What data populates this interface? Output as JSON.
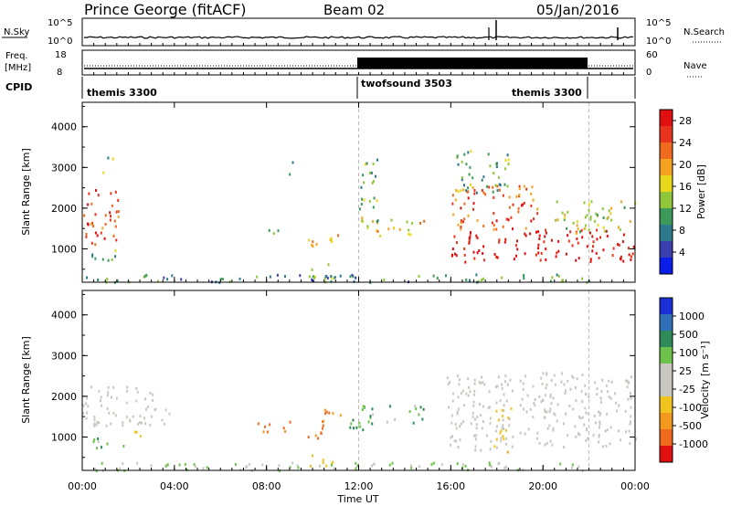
{
  "header": {
    "station": "Prince George (fitACF)",
    "beam": "Beam 02",
    "date": "05/Jan/2016"
  },
  "noise_panel": {
    "left_label": "N.Sky",
    "right_label": "N.Search",
    "tick_hi": "10^5",
    "tick_lo": "10^0"
  },
  "freq_panel": {
    "left_label": "Freq.",
    "unit": "[MHz]",
    "tick_hi": "18",
    "tick_lo": "8",
    "right_tick_hi": "60",
    "right_tick_lo": "0",
    "right_label": "Nave"
  },
  "cpid": {
    "label": "CPID",
    "modes": [
      {
        "name": "themis 3300",
        "start": "00:00"
      },
      {
        "name": "twofsound 3503",
        "start": "12:00"
      },
      {
        "name": "themis 3300",
        "start": "22:00"
      }
    ]
  },
  "colors": {
    "power_scale": [
      "#0b1de8",
      "#3a3fb0",
      "#2e7a8a",
      "#3b9a5a",
      "#8fc63a",
      "#e8d71a",
      "#f4a21f",
      "#f06a1e",
      "#e8341c",
      "#e01010"
    ],
    "velocity_scale": [
      "#1b2fd6",
      "#2f6fb8",
      "#2f8a5a",
      "#6cc24a",
      "#c8c8c0",
      "#c8c8c0",
      "#f0c31e",
      "#f39a1e",
      "#f06a1e",
      "#e01010"
    ],
    "ground_scatter": "#c8c8c0"
  },
  "chart_data": [
    {
      "type": "heatmap",
      "title": "",
      "ylabel": "Slant Range [km]",
      "ylim": [
        180,
        4600
      ],
      "yticks": [
        "1000",
        "2000",
        "3000",
        "4000"
      ],
      "colorbar": {
        "label": "Power [dB]",
        "ticks": [
          "4",
          "8",
          "12",
          "16",
          "20",
          "24",
          "28"
        ],
        "range": [
          0,
          30
        ]
      },
      "blobs": [
        {
          "t0": 0.0,
          "t1": 1.6,
          "r0": 1100,
          "r1": 2500,
          "level": 24
        },
        {
          "t0": 0.4,
          "t1": 1.9,
          "r0": 700,
          "r1": 1000,
          "level": 10
        },
        {
          "t0": 0.8,
          "t1": 1.3,
          "r0": 2900,
          "r1": 3300,
          "level": 12
        },
        {
          "t0": 7.9,
          "t1": 8.5,
          "r0": 1300,
          "r1": 1600,
          "level": 14
        },
        {
          "t0": 8.9,
          "t1": 9.2,
          "r0": 2800,
          "r1": 3300,
          "level": 10
        },
        {
          "t0": 10.7,
          "t1": 11.4,
          "r0": 1150,
          "r1": 1550,
          "level": 18
        },
        {
          "t0": 9.6,
          "t1": 10.4,
          "r0": 1000,
          "r1": 1400,
          "level": 16
        },
        {
          "t0": 12.1,
          "t1": 14.9,
          "r0": 1350,
          "r1": 1800,
          "level": 16
        },
        {
          "t0": 12.0,
          "t1": 12.8,
          "r0": 1700,
          "r1": 3400,
          "level": 10
        },
        {
          "t0": 16.0,
          "t1": 24.0,
          "r0": 700,
          "r1": 1500,
          "level": 28
        },
        {
          "t0": 16.0,
          "t1": 19.8,
          "r0": 1500,
          "r1": 2600,
          "level": 22
        },
        {
          "t0": 16.2,
          "t1": 18.5,
          "r0": 2400,
          "r1": 3500,
          "level": 10
        },
        {
          "t0": 20.5,
          "t1": 24.0,
          "r0": 1400,
          "r1": 2200,
          "level": 14
        },
        {
          "t0": 9.8,
          "t1": 11.0,
          "r0": 300,
          "r1": 650,
          "level": 12
        },
        {
          "t0": 0.0,
          "t1": 22.0,
          "r0": 200,
          "r1": 400,
          "level": 8
        }
      ]
    },
    {
      "type": "heatmap",
      "title": "",
      "xlabel": "Time UT",
      "ylabel": "Slant Range [km]",
      "ylim": [
        180,
        4600
      ],
      "xticks": [
        "00:00",
        "04:00",
        "08:00",
        "12:00",
        "16:00",
        "20:00",
        "00:00"
      ],
      "yticks": [
        "1000",
        "2000",
        "3000",
        "4000"
      ],
      "colorbar": {
        "label": "Velocity [m s⁻¹]",
        "ticks": [
          "1000",
          "500",
          "100",
          "25",
          "-25",
          "-100",
          "-500",
          "-1000"
        ]
      },
      "blobs": [
        {
          "t0": 0.0,
          "t1": 3.8,
          "r0": 1300,
          "r1": 2300,
          "value": 0
        },
        {
          "t0": 0.4,
          "t1": 1.9,
          "r0": 700,
          "r1": 1000,
          "value": 100
        },
        {
          "t0": 1.9,
          "t1": 2.5,
          "r0": 1050,
          "r1": 1300,
          "value": -100
        },
        {
          "t0": 7.6,
          "t1": 9.0,
          "r0": 1150,
          "r1": 1500,
          "value": -500
        },
        {
          "t0": 9.6,
          "t1": 10.6,
          "r0": 1000,
          "r1": 1450,
          "value": -500
        },
        {
          "t0": 10.3,
          "t1": 11.3,
          "r0": 1300,
          "r1": 1700,
          "value": -400
        },
        {
          "t0": 11.2,
          "t1": 12.2,
          "r0": 1100,
          "r1": 1550,
          "value": 200
        },
        {
          "t0": 12.1,
          "t1": 14.9,
          "r0": 1350,
          "r1": 1800,
          "value": 150
        },
        {
          "t0": 15.8,
          "t1": 24.0,
          "r0": 700,
          "r1": 2600,
          "value": 0
        },
        {
          "t0": 17.8,
          "t1": 18.6,
          "r0": 600,
          "r1": 1800,
          "value": -100
        },
        {
          "t0": 9.8,
          "t1": 11.0,
          "r0": 300,
          "r1": 650,
          "value": -100
        },
        {
          "t0": 0.0,
          "t1": 22.0,
          "r0": 200,
          "r1": 400,
          "value": 60
        }
      ]
    }
  ]
}
